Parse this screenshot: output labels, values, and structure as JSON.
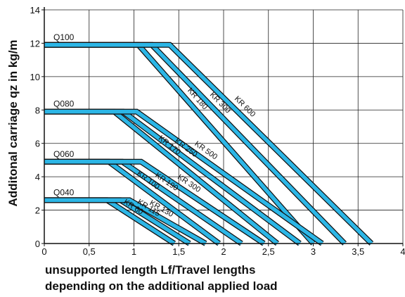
{
  "chart_data": {
    "type": "line",
    "title": "",
    "ylabel": "Additonal carriage qz in kg/m",
    "xlabel_lines": [
      "unsupported length Lf/Travel lengths",
      "depending on the additional applied load"
    ],
    "xlim": [
      0,
      4
    ],
    "ylim": [
      0,
      14
    ],
    "x_ticks": [
      "0",
      "0,5",
      "1",
      "1,5",
      "2",
      "2,5",
      "3",
      "3,5",
      "4"
    ],
    "y_ticks": [
      "0",
      "2",
      "4",
      "6",
      "8",
      "10",
      "12",
      "14"
    ],
    "grid": true,
    "series_color": "#2cb6e6",
    "outline_color": "#111111",
    "groups": [
      {
        "name": "Q100",
        "qz": 11.9,
        "lines": [
          {
            "label": "KR 180",
            "x_start": 1.05,
            "x_end": 3.0
          },
          {
            "label": "KR 300",
            "x_start": 1.2,
            "x_end": 3.35
          },
          {
            "label": "KR 600",
            "x_start": 1.4,
            "x_end": 3.65
          }
        ]
      },
      {
        "name": "Q080",
        "qz": 7.9,
        "lines": [
          {
            "label": "KR 170",
            "x_start": 0.78,
            "x_end": 2.6
          },
          {
            "label": "KR 250",
            "x_start": 0.88,
            "x_end": 2.85
          },
          {
            "label": "KR 500",
            "x_start": 1.03,
            "x_end": 3.1
          }
        ]
      },
      {
        "name": "Q060",
        "qz": 4.9,
        "lines": [
          {
            "label": "KR 100",
            "x_start": 0.72,
            "x_end": 1.95
          },
          {
            "label": "KR 190",
            "x_start": 0.87,
            "x_end": 2.2
          },
          {
            "label": "KR 300",
            "x_start": 1.08,
            "x_end": 2.45
          }
        ]
      },
      {
        "name": "Q040",
        "qz": 2.6,
        "lines": [
          {
            "label": "KR 60",
            "x_start": 0.7,
            "x_end": 1.45
          },
          {
            "label": "KR 115",
            "x_start": 0.85,
            "x_end": 1.62
          },
          {
            "label": "KR 130",
            "x_start": 0.95,
            "x_end": 1.8
          }
        ]
      }
    ]
  }
}
